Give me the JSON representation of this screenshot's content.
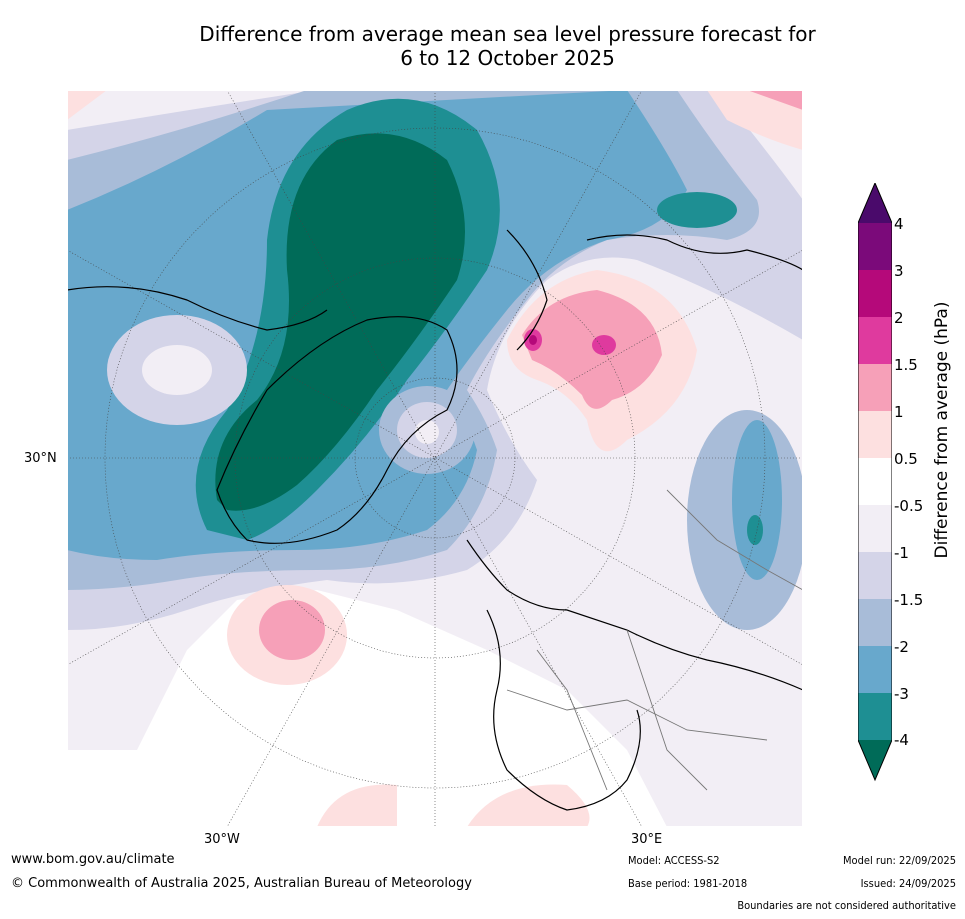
{
  "title": {
    "line1": "Difference from average mean sea level pressure forecast for",
    "line2": "6 to 12 October 2025"
  },
  "map": {
    "name": "Mean sea level pressure anomaly map, North polar stereographic projection",
    "graticule_labels": {
      "lat_left": "30°N",
      "lon_bottom_left": "30°W",
      "lon_bottom_right": "30°E"
    }
  },
  "colorbar": {
    "title": "Difference from average (hPa)",
    "tick_labels": [
      "4",
      "3",
      "2",
      "1.5",
      "1",
      "0.5",
      "-0.5",
      "-1",
      "-1.5",
      "-2",
      "-3",
      "-4"
    ],
    "colors": {
      "gt4": "#4a0a6b",
      "3to4": "#7b0a7a",
      "2to3": "#b5097a",
      "1.5to2": "#df3a9e",
      "1to1.5": "#f6a0b8",
      "0.5to1": "#fde0e0",
      "m0.5to0.5": "#ffffff",
      "m1tom0.5": "#f2eef5",
      "m1.5tom1": "#d4d4e8",
      "m2tom1.5": "#a8bcd8",
      "m3tom2": "#68a8cc",
      "m4tom3": "#1e8f93",
      "lt_m4": "#006b58"
    }
  },
  "footer": {
    "website": "www.bom.gov.au/climate",
    "copyright": "© Commonwealth of Australia 2025, Australian Bureau of Meteorology",
    "model": "Model: ACCESS-S2",
    "base_period": "Base period: 1981-2018",
    "model_run": "Model run: 22/09/2025",
    "issued": "Issued: 24/09/2025",
    "disclaimer": "Boundaries are not considered authoritative"
  }
}
